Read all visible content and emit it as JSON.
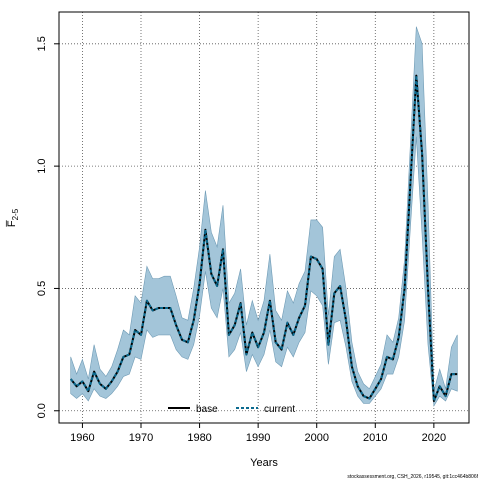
{
  "chart_data": {
    "type": "line",
    "title": "",
    "xlabel": "Years",
    "ylabel": "F̅",
    "ylabel_sub": "2-5",
    "xlim": [
      1956,
      2026
    ],
    "ylim": [
      -0.05,
      1.63
    ],
    "xticks": [
      1960,
      1970,
      1980,
      1990,
      2000,
      2010,
      2020
    ],
    "yticks": [
      0.0,
      0.5,
      1.0,
      1.5
    ],
    "ytick_labels": [
      "0.0",
      "0.5",
      "1.0",
      "1.5"
    ],
    "grid": true,
    "legend_placement": "bottom-center",
    "band_color": "#a3c5d9",
    "band_edge_color": "#6f9bb5",
    "x": [
      1958,
      1959,
      1960,
      1961,
      1962,
      1963,
      1964,
      1965,
      1966,
      1967,
      1968,
      1969,
      1970,
      1971,
      1972,
      1973,
      1974,
      1975,
      1976,
      1977,
      1978,
      1979,
      1980,
      1981,
      1982,
      1983,
      1984,
      1985,
      1986,
      1987,
      1988,
      1989,
      1990,
      1991,
      1992,
      1993,
      1994,
      1995,
      1996,
      1997,
      1998,
      1999,
      2000,
      2001,
      2002,
      2003,
      2004,
      2005,
      2006,
      2007,
      2008,
      2009,
      2010,
      2011,
      2012,
      2013,
      2014,
      2015,
      2016,
      2017,
      2018,
      2019,
      2020,
      2021,
      2022,
      2023,
      2024
    ],
    "series": [
      {
        "name": "base",
        "color": "#000000",
        "style": "solid",
        "values": [
          0.13,
          0.1,
          0.12,
          0.08,
          0.16,
          0.11,
          0.09,
          0.12,
          0.16,
          0.22,
          0.23,
          0.33,
          0.31,
          0.45,
          0.41,
          0.42,
          0.42,
          0.42,
          0.35,
          0.29,
          0.28,
          0.37,
          0.52,
          0.74,
          0.56,
          0.51,
          0.66,
          0.31,
          0.35,
          0.44,
          0.23,
          0.32,
          0.26,
          0.32,
          0.45,
          0.28,
          0.25,
          0.36,
          0.31,
          0.38,
          0.43,
          0.63,
          0.62,
          0.58,
          0.27,
          0.48,
          0.51,
          0.37,
          0.18,
          0.1,
          0.06,
          0.05,
          0.09,
          0.13,
          0.22,
          0.21,
          0.3,
          0.5,
          0.93,
          1.37,
          1.05,
          0.5,
          0.04,
          0.1,
          0.06,
          0.15,
          0.15
        ]
      },
      {
        "name": "current",
        "color": "#0b6a8f",
        "style": "dashed",
        "values": [
          0.13,
          0.1,
          0.12,
          0.08,
          0.16,
          0.11,
          0.09,
          0.12,
          0.16,
          0.22,
          0.23,
          0.33,
          0.31,
          0.45,
          0.41,
          0.42,
          0.42,
          0.42,
          0.35,
          0.29,
          0.28,
          0.37,
          0.52,
          0.74,
          0.56,
          0.51,
          0.66,
          0.31,
          0.35,
          0.44,
          0.23,
          0.32,
          0.26,
          0.32,
          0.45,
          0.28,
          0.25,
          0.36,
          0.31,
          0.38,
          0.43,
          0.63,
          0.62,
          0.58,
          0.27,
          0.48,
          0.51,
          0.37,
          0.18,
          0.1,
          0.06,
          0.05,
          0.09,
          0.13,
          0.22,
          0.21,
          0.3,
          0.5,
          0.93,
          1.37,
          1.05,
          0.5,
          0.04,
          0.1,
          0.06,
          0.15,
          0.15
        ]
      }
    ],
    "band_upper": [
      0.22,
      0.15,
      0.21,
      0.13,
      0.27,
      0.17,
      0.14,
      0.18,
      0.25,
      0.33,
      0.31,
      0.47,
      0.44,
      0.59,
      0.54,
      0.54,
      0.55,
      0.55,
      0.47,
      0.38,
      0.37,
      0.5,
      0.67,
      0.9,
      0.73,
      0.67,
      0.84,
      0.44,
      0.48,
      0.58,
      0.35,
      0.45,
      0.37,
      0.45,
      0.64,
      0.41,
      0.37,
      0.49,
      0.44,
      0.52,
      0.57,
      0.78,
      0.78,
      0.75,
      0.39,
      0.63,
      0.66,
      0.5,
      0.28,
      0.16,
      0.11,
      0.09,
      0.14,
      0.19,
      0.31,
      0.28,
      0.38,
      0.62,
      1.09,
      1.57,
      1.5,
      0.85,
      0.08,
      0.17,
      0.09,
      0.26,
      0.31
    ],
    "band_lower": [
      0.07,
      0.05,
      0.07,
      0.04,
      0.09,
      0.06,
      0.05,
      0.07,
      0.1,
      0.14,
      0.15,
      0.22,
      0.21,
      0.33,
      0.3,
      0.31,
      0.31,
      0.31,
      0.25,
      0.22,
      0.21,
      0.27,
      0.39,
      0.57,
      0.42,
      0.38,
      0.5,
      0.22,
      0.25,
      0.32,
      0.16,
      0.23,
      0.18,
      0.23,
      0.33,
      0.2,
      0.18,
      0.26,
      0.22,
      0.28,
      0.32,
      0.49,
      0.47,
      0.43,
      0.19,
      0.36,
      0.37,
      0.26,
      0.12,
      0.06,
      0.03,
      0.03,
      0.06,
      0.09,
      0.15,
      0.15,
      0.22,
      0.37,
      0.75,
      1.12,
      0.72,
      0.27,
      0.02,
      0.06,
      0.04,
      0.09,
      0.08
    ]
  },
  "credit_text": "stockassessment.org, CSH_2026, r19545, git:1cc464b806f"
}
